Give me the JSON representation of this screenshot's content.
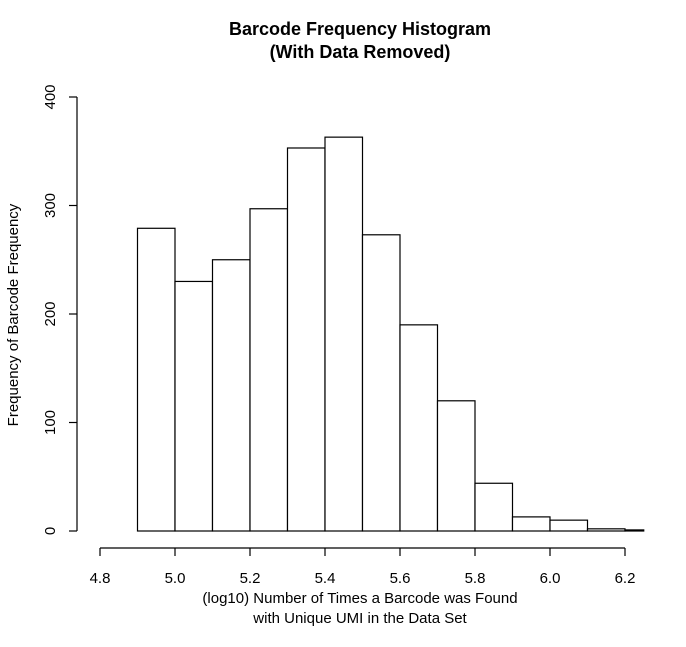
{
  "chart_data": {
    "type": "bar",
    "title_lines": [
      "Barcode Frequency Histogram",
      "(With Data Removed)"
    ],
    "xlabel_lines": [
      "(log10) Number of Times a Barcode was Found",
      "with Unique UMI in the Data Set"
    ],
    "ylabel": "Frequency of Barcode Frequency",
    "bins": [
      {
        "start": 4.9,
        "end": 5.0,
        "value": 279
      },
      {
        "start": 5.0,
        "end": 5.1,
        "value": 230
      },
      {
        "start": 5.1,
        "end": 5.2,
        "value": 250
      },
      {
        "start": 5.2,
        "end": 5.3,
        "value": 297
      },
      {
        "start": 5.3,
        "end": 5.4,
        "value": 353
      },
      {
        "start": 5.4,
        "end": 5.5,
        "value": 363
      },
      {
        "start": 5.5,
        "end": 5.6,
        "value": 273
      },
      {
        "start": 5.6,
        "end": 5.7,
        "value": 190
      },
      {
        "start": 5.7,
        "end": 5.8,
        "value": 120
      },
      {
        "start": 5.8,
        "end": 5.9,
        "value": 44
      },
      {
        "start": 5.9,
        "end": 6.0,
        "value": 13
      },
      {
        "start": 6.0,
        "end": 6.1,
        "value": 10
      },
      {
        "start": 6.1,
        "end": 6.2,
        "value": 2
      },
      {
        "start": 6.2,
        "end": 6.25,
        "value": 1
      }
    ],
    "xlim": [
      4.8,
      6.25
    ],
    "ylim": [
      0,
      400
    ],
    "xticks": [
      "4.8",
      "5.0",
      "5.2",
      "5.4",
      "5.6",
      "5.8",
      "6.0",
      "6.2"
    ],
    "yticks": [
      "0",
      "100",
      "200",
      "300",
      "400"
    ],
    "grid": false,
    "legend": false
  }
}
